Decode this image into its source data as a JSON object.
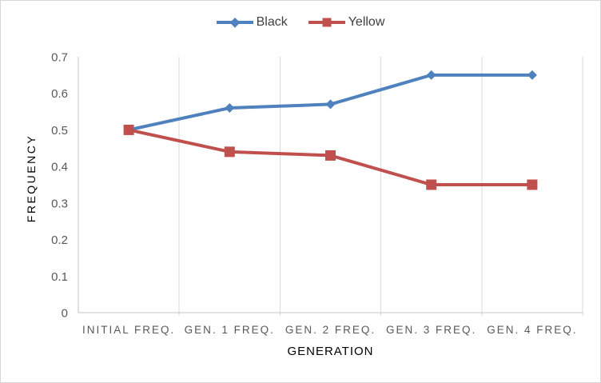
{
  "chart_data": {
    "type": "line",
    "categories": [
      "INITIAL FREQ.",
      "GEN. 1 FREQ.",
      "GEN. 2 FREQ.",
      "GEN. 3 FREQ.",
      "GEN. 4 FREQ."
    ],
    "series": [
      {
        "name": "Black",
        "values": [
          0.5,
          0.56,
          0.57,
          0.65,
          0.65
        ],
        "color": "#4F81BD",
        "marker": "diamond"
      },
      {
        "name": "Yellow",
        "values": [
          0.5,
          0.44,
          0.43,
          0.35,
          0.35
        ],
        "color": "#C0504D",
        "marker": "square"
      }
    ],
    "xlabel": "GENERATION",
    "ylabel": "FREQUENCY",
    "ylim": [
      0,
      0.7
    ],
    "yticks": [
      "0",
      "0.1",
      "0.2",
      "0.3",
      "0.4",
      "0.5",
      "0.6",
      "0.7"
    ],
    "grid": "vertical-only",
    "legend_position": "top-center"
  },
  "colors": {
    "gridline": "#D9D9D9",
    "axis_line": "#C6C6C6",
    "tick_label": "#595959",
    "axis_title": "#595959",
    "legend_text": "#404040",
    "chart_border": "#D6D6D6",
    "background": "#FFFFFF"
  }
}
